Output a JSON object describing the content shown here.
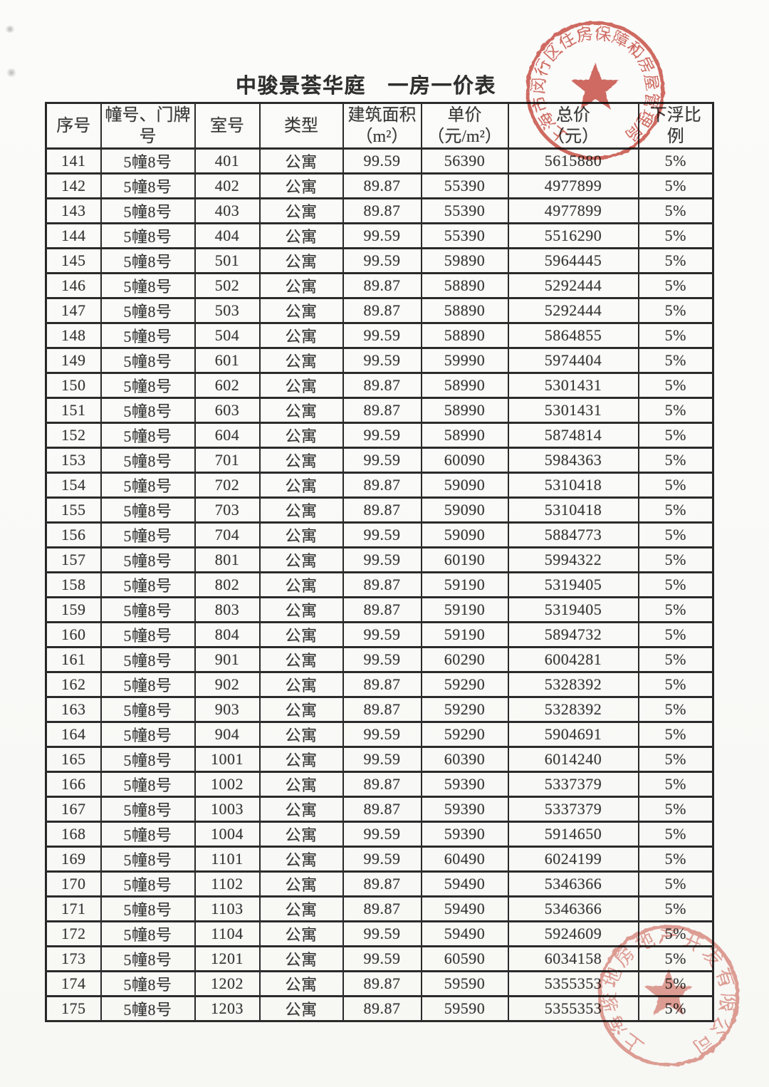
{
  "page": {
    "title": "中骏景荟华庭　一房一价表"
  },
  "table": {
    "headers": [
      "序号",
      "幢号、门牌\n号",
      "室号",
      "类型",
      "建筑面积\n（m²）",
      "单价\n（元/m²）",
      "总价\n（元）",
      "下浮比\n例"
    ],
    "rows": [
      [
        "141",
        "5幢8号",
        "401",
        "公寓",
        "99.59",
        "56390",
        "5615880",
        "5%"
      ],
      [
        "142",
        "5幢8号",
        "402",
        "公寓",
        "89.87",
        "55390",
        "4977899",
        "5%"
      ],
      [
        "143",
        "5幢8号",
        "403",
        "公寓",
        "89.87",
        "55390",
        "4977899",
        "5%"
      ],
      [
        "144",
        "5幢8号",
        "404",
        "公寓",
        "99.59",
        "55390",
        "5516290",
        "5%"
      ],
      [
        "145",
        "5幢8号",
        "501",
        "公寓",
        "99.59",
        "59890",
        "5964445",
        "5%"
      ],
      [
        "146",
        "5幢8号",
        "502",
        "公寓",
        "89.87",
        "58890",
        "5292444",
        "5%"
      ],
      [
        "147",
        "5幢8号",
        "503",
        "公寓",
        "89.87",
        "58890",
        "5292444",
        "5%"
      ],
      [
        "148",
        "5幢8号",
        "504",
        "公寓",
        "99.59",
        "58890",
        "5864855",
        "5%"
      ],
      [
        "149",
        "5幢8号",
        "601",
        "公寓",
        "99.59",
        "59990",
        "5974404",
        "5%"
      ],
      [
        "150",
        "5幢8号",
        "602",
        "公寓",
        "89.87",
        "58990",
        "5301431",
        "5%"
      ],
      [
        "151",
        "5幢8号",
        "603",
        "公寓",
        "89.87",
        "58990",
        "5301431",
        "5%"
      ],
      [
        "152",
        "5幢8号",
        "604",
        "公寓",
        "99.59",
        "58990",
        "5874814",
        "5%"
      ],
      [
        "153",
        "5幢8号",
        "701",
        "公寓",
        "99.59",
        "60090",
        "5984363",
        "5%"
      ],
      [
        "154",
        "5幢8号",
        "702",
        "公寓",
        "89.87",
        "59090",
        "5310418",
        "5%"
      ],
      [
        "155",
        "5幢8号",
        "703",
        "公寓",
        "89.87",
        "59090",
        "5310418",
        "5%"
      ],
      [
        "156",
        "5幢8号",
        "704",
        "公寓",
        "99.59",
        "59090",
        "5884773",
        "5%"
      ],
      [
        "157",
        "5幢8号",
        "801",
        "公寓",
        "99.59",
        "60190",
        "5994322",
        "5%"
      ],
      [
        "158",
        "5幢8号",
        "802",
        "公寓",
        "89.87",
        "59190",
        "5319405",
        "5%"
      ],
      [
        "159",
        "5幢8号",
        "803",
        "公寓",
        "89.87",
        "59190",
        "5319405",
        "5%"
      ],
      [
        "160",
        "5幢8号",
        "804",
        "公寓",
        "99.59",
        "59190",
        "5894732",
        "5%"
      ],
      [
        "161",
        "5幢8号",
        "901",
        "公寓",
        "99.59",
        "60290",
        "6004281",
        "5%"
      ],
      [
        "162",
        "5幢8号",
        "902",
        "公寓",
        "89.87",
        "59290",
        "5328392",
        "5%"
      ],
      [
        "163",
        "5幢8号",
        "903",
        "公寓",
        "89.87",
        "59290",
        "5328392",
        "5%"
      ],
      [
        "164",
        "5幢8号",
        "904",
        "公寓",
        "99.59",
        "59290",
        "5904691",
        "5%"
      ],
      [
        "165",
        "5幢8号",
        "1001",
        "公寓",
        "99.59",
        "60390",
        "6014240",
        "5%"
      ],
      [
        "166",
        "5幢8号",
        "1002",
        "公寓",
        "89.87",
        "59390",
        "5337379",
        "5%"
      ],
      [
        "167",
        "5幢8号",
        "1003",
        "公寓",
        "89.87",
        "59390",
        "5337379",
        "5%"
      ],
      [
        "168",
        "5幢8号",
        "1004",
        "公寓",
        "99.59",
        "59390",
        "5914650",
        "5%"
      ],
      [
        "169",
        "5幢8号",
        "1101",
        "公寓",
        "99.59",
        "60490",
        "6024199",
        "5%"
      ],
      [
        "170",
        "5幢8号",
        "1102",
        "公寓",
        "89.87",
        "59490",
        "5346366",
        "5%"
      ],
      [
        "171",
        "5幢8号",
        "1103",
        "公寓",
        "89.87",
        "59490",
        "5346366",
        "5%"
      ],
      [
        "172",
        "5幢8号",
        "1104",
        "公寓",
        "99.59",
        "59490",
        "5924609",
        "5%"
      ],
      [
        "173",
        "5幢8号",
        "1201",
        "公寓",
        "99.59",
        "60590",
        "6034158",
        "5%"
      ],
      [
        "174",
        "5幢8号",
        "1202",
        "公寓",
        "89.87",
        "59590",
        "5355353",
        "5%"
      ],
      [
        "175",
        "5幢8号",
        "1203",
        "公寓",
        "89.87",
        "59590",
        "5355353",
        "5%"
      ]
    ]
  },
  "stamps": {
    "top": {
      "text": "上海市闵行区住房保障和房屋管理局",
      "color": "#c84b41"
    },
    "bottom": {
      "text": "上海骏地房地产开发有限公司",
      "color": "#d8796e"
    }
  }
}
